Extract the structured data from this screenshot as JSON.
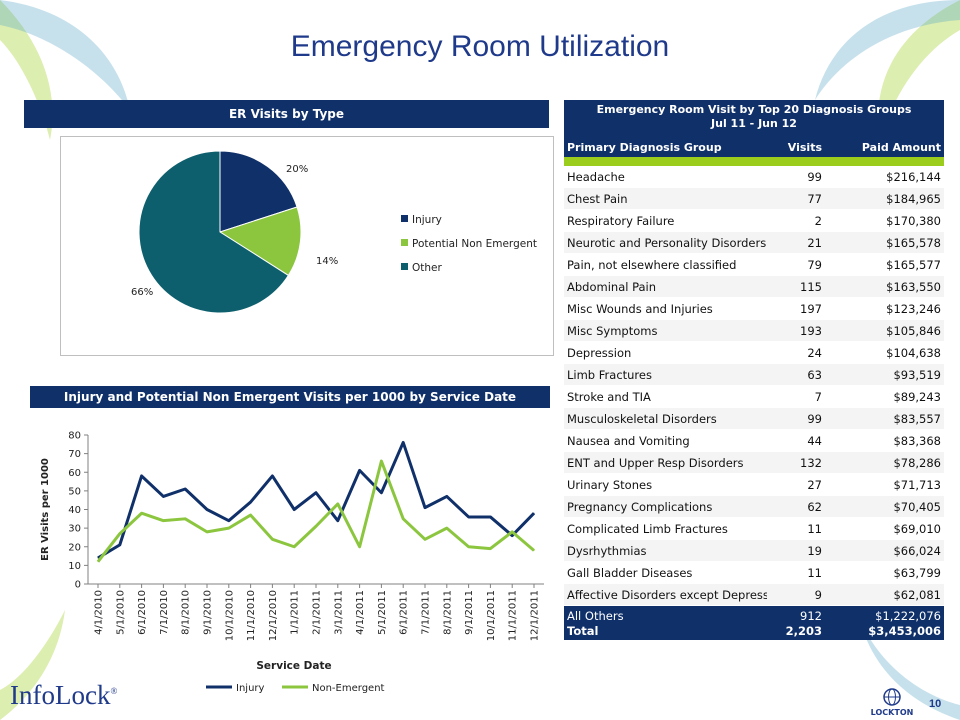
{
  "title": "Emergency Room Utilization",
  "pie": {
    "header": "ER Visits by Type",
    "labels": [
      "20%",
      "14%",
      "66%"
    ]
  },
  "line_section": {
    "header": "Injury and Potential Non Emergent Visits per 1000 by Service Date"
  },
  "table": {
    "title_line1": "Emergency Room Visit by Top 20 Diagnosis Groups",
    "title_line2": "Jul 11 - Jun 12",
    "col_group": "Primary Diagnosis Group",
    "col_visits": "Visits",
    "col_paid": "Paid Amount",
    "rows": [
      {
        "group": "Headache",
        "visits": "99",
        "paid": "$216,144"
      },
      {
        "group": "Chest Pain",
        "visits": "77",
        "paid": "$184,965"
      },
      {
        "group": "Respiratory Failure",
        "visits": "2",
        "paid": "$170,380"
      },
      {
        "group": "Neurotic and Personality Disorders",
        "visits": "21",
        "paid": "$165,578"
      },
      {
        "group": "Pain, not elsewhere classified",
        "visits": "79",
        "paid": "$165,577"
      },
      {
        "group": "Abdominal Pain",
        "visits": "115",
        "paid": "$163,550"
      },
      {
        "group": "Misc Wounds and Injuries",
        "visits": "197",
        "paid": "$123,246"
      },
      {
        "group": "Misc Symptoms",
        "visits": "193",
        "paid": "$105,846"
      },
      {
        "group": "Depression",
        "visits": "24",
        "paid": "$104,638"
      },
      {
        "group": "Limb Fractures",
        "visits": "63",
        "paid": "$93,519"
      },
      {
        "group": "Stroke and TIA",
        "visits": "7",
        "paid": "$89,243"
      },
      {
        "group": "Musculoskeletal Disorders",
        "visits": "99",
        "paid": "$83,557"
      },
      {
        "group": "Nausea and Vomiting",
        "visits": "44",
        "paid": "$83,368"
      },
      {
        "group": "ENT and Upper Resp Disorders",
        "visits": "132",
        "paid": "$78,286"
      },
      {
        "group": "Urinary Stones",
        "visits": "27",
        "paid": "$71,713"
      },
      {
        "group": "Pregnancy Complications",
        "visits": "62",
        "paid": "$70,405"
      },
      {
        "group": "Complicated Limb Fractures",
        "visits": "11",
        "paid": "$69,010"
      },
      {
        "group": "Dysrhythmias",
        "visits": "19",
        "paid": "$66,024"
      },
      {
        "group": "Gall Bladder Diseases",
        "visits": "11",
        "paid": "$63,799"
      },
      {
        "group": "Affective Disorders except Depression",
        "visits": "9",
        "paid": "$62,081"
      }
    ],
    "all_others": {
      "group": "All Others",
      "visits": "912",
      "paid": "$1,222,076"
    },
    "total": {
      "group": "Total",
      "visits": "2,203",
      "paid": "$3,453,006"
    }
  },
  "footer": {
    "logo_text": "InfoLock",
    "logo_mark": "®",
    "brand": "LOCKTON",
    "page_number": "10"
  },
  "colors": {
    "navy": "#10306a",
    "injury": "#10306a",
    "non_emergent": "#8cc63f",
    "other": "#0e5f6d",
    "title": "#1f3a8a"
  },
  "chart_data": [
    {
      "type": "pie",
      "title": "ER Visits by Type",
      "categories": [
        "Injury",
        "Potential Non Emergent",
        "Other"
      ],
      "values": [
        20,
        14,
        66
      ],
      "data_labels": [
        "20%",
        "14%",
        "66%"
      ],
      "colors": [
        "#10306a",
        "#8cc63f",
        "#0e5f6d"
      ],
      "legend": "right"
    },
    {
      "type": "line",
      "title": "Injury and Potential Non Emergent Visits per 1000 by Service Date",
      "xlabel": "Service Date",
      "ylabel": "ER Visits per 1000",
      "ylim": [
        0,
        80
      ],
      "yticks": [
        0,
        10,
        20,
        30,
        40,
        50,
        60,
        70,
        80
      ],
      "grid": false,
      "legend": "bottom",
      "x": [
        "4/1/2010",
        "5/1/2010",
        "6/1/2010",
        "7/1/2010",
        "8/1/2010",
        "9/1/2010",
        "10/1/2010",
        "11/1/2010",
        "12/1/2010",
        "1/1/2011",
        "2/1/2011",
        "3/1/2011",
        "4/1/2011",
        "5/1/2011",
        "6/1/2011",
        "7/1/2011",
        "8/1/2011",
        "9/1/2011",
        "10/1/2011",
        "11/1/2011",
        "12/1/2011"
      ],
      "series": [
        {
          "name": "Injury",
          "color": "#10306a",
          "values": [
            14,
            21,
            58,
            47,
            51,
            40,
            34,
            44,
            58,
            40,
            49,
            34,
            61,
            49,
            76,
            41,
            47,
            36,
            36,
            26,
            38
          ]
        },
        {
          "name": "Non-Emergent",
          "color": "#8cc63f",
          "values": [
            12,
            27,
            38,
            34,
            35,
            28,
            30,
            37,
            24,
            20,
            31,
            43,
            20,
            66,
            35,
            24,
            30,
            20,
            19,
            28,
            18
          ]
        }
      ]
    }
  ]
}
